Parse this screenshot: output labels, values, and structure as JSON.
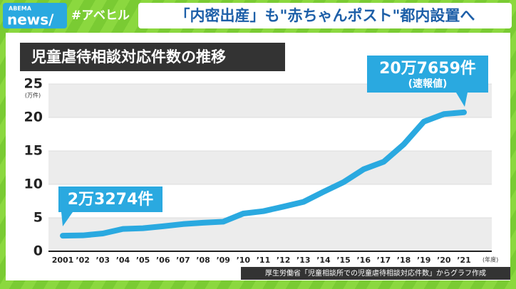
{
  "header": {
    "logo_top": "ABEMA",
    "logo_bottom": "news/",
    "hashtag": "#アベヒル",
    "headline": "「内密出産」も\"赤ちゃんポスト\"都内設置へ"
  },
  "chart_data": {
    "type": "line",
    "title": "児童虐待相談対応件数の推移",
    "categories": [
      "2001",
      "’02",
      "’03",
      "’04",
      "’05",
      "’06",
      "’07",
      "’08",
      "’09",
      "’10",
      "’11",
      "’12",
      "’13",
      "’14",
      "’15",
      "’16",
      "’17",
      "’18",
      "’19",
      "’20",
      "’21"
    ],
    "values": [
      2.3274,
      2.3738,
      2.6569,
      3.3408,
      3.4472,
      3.7323,
      4.0639,
      4.2664,
      4.4211,
      5.6384,
      5.9919,
      6.6701,
      7.3802,
      8.8931,
      10.3286,
      12.2575,
      13.3778,
      15.9838,
      19.378,
      20.5044,
      20.7659
    ],
    "color": "#2aa9e0",
    "ylim": [
      0,
      25
    ],
    "yticks": [
      0,
      5,
      10,
      15,
      20,
      25
    ],
    "grid": true,
    "y_axis_label": "(万件)",
    "x_axis_label": "(年度)",
    "annotations": [
      {
        "text": "20万7659件",
        "subtext": "(速報値)"
      },
      {
        "text": "2万3274件"
      }
    ],
    "source": "厚生労働省「児童相談所での児童虐待相談対応件数」からグラフ作成"
  }
}
